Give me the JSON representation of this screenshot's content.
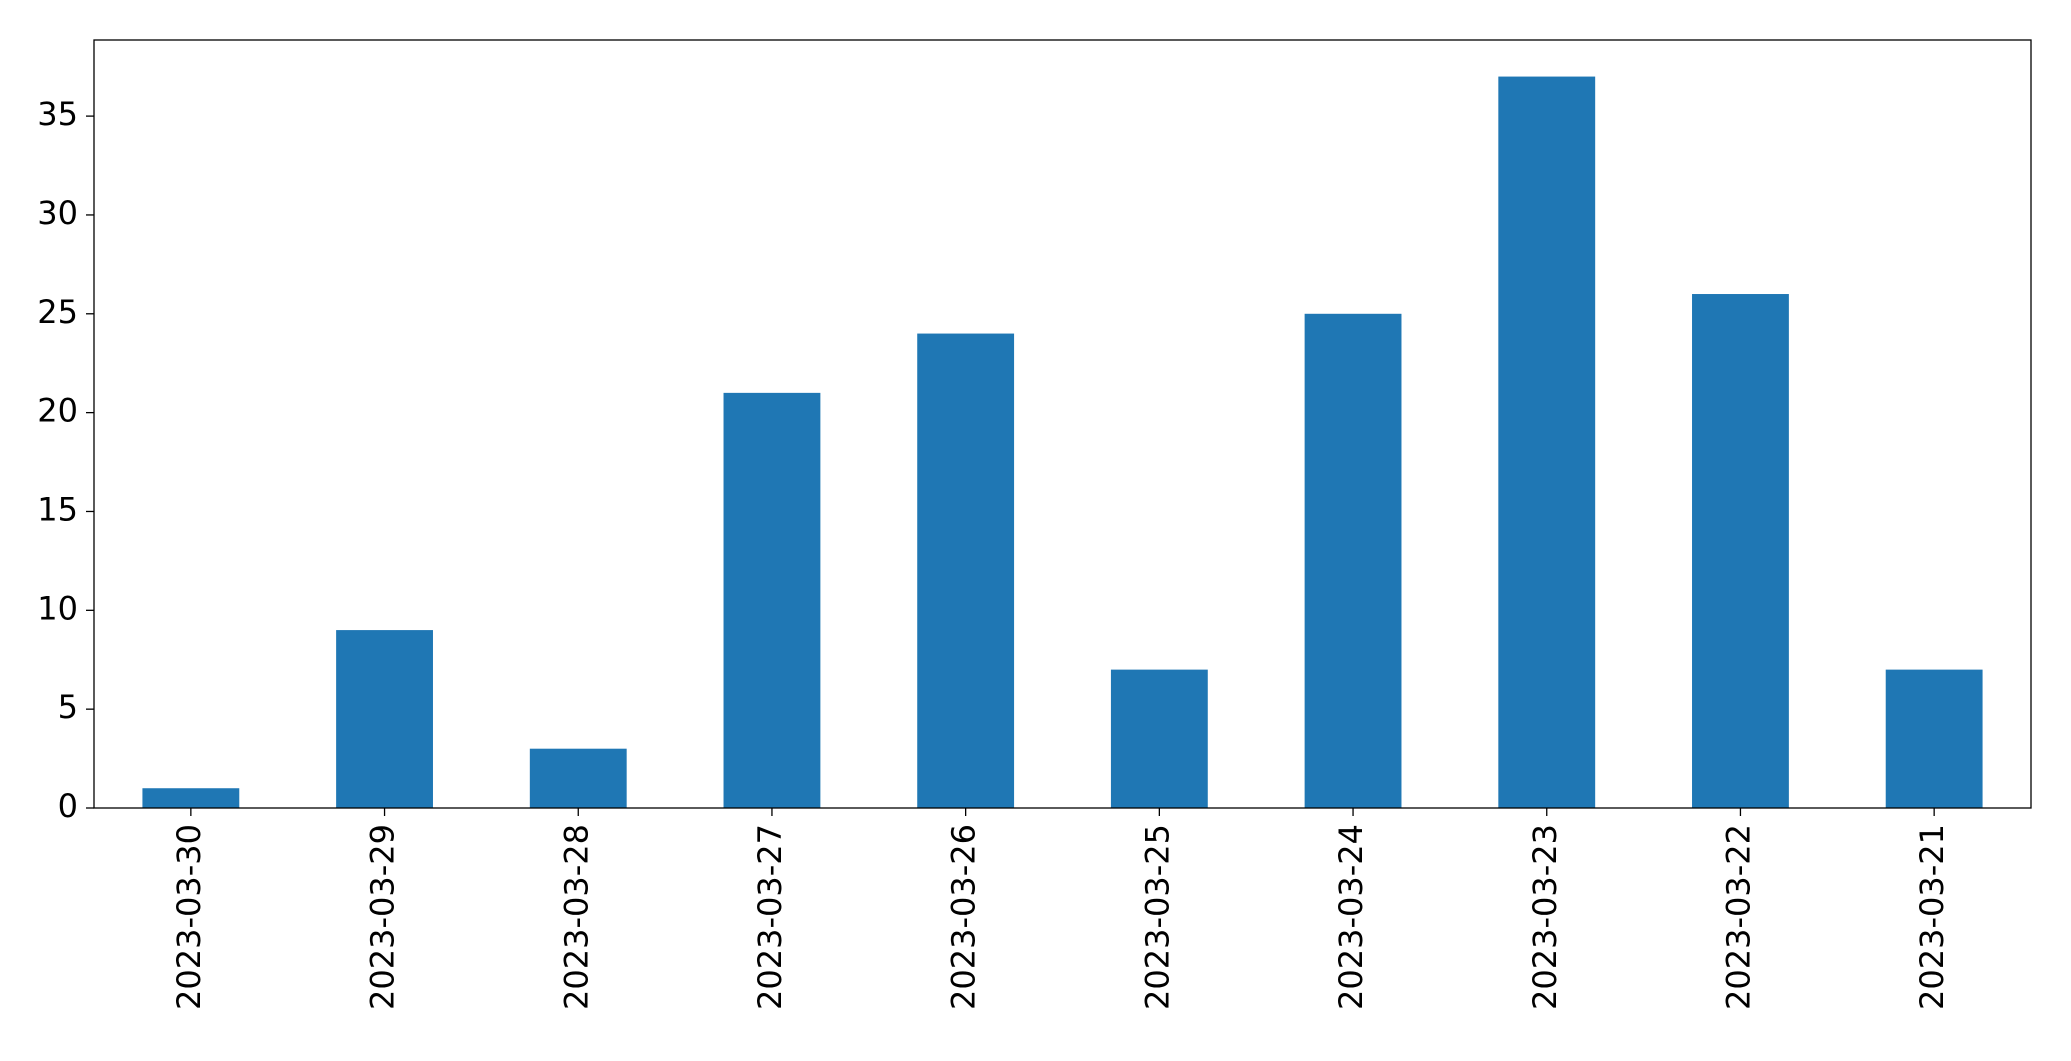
{
  "chart_data": {
    "type": "bar",
    "categories": [
      "2023-03-30",
      "2023-03-29",
      "2023-03-28",
      "2023-03-27",
      "2023-03-26",
      "2023-03-25",
      "2023-03-24",
      "2023-03-23",
      "2023-03-22",
      "2023-03-21"
    ],
    "values": [
      1,
      9,
      3,
      21,
      24,
      7,
      25,
      37,
      26,
      7
    ],
    "color": "#1f77b4",
    "ylim": [
      0,
      38.85
    ],
    "yticks": [
      0,
      5,
      10,
      15,
      20,
      25,
      30,
      35
    ],
    "grid": false
  }
}
